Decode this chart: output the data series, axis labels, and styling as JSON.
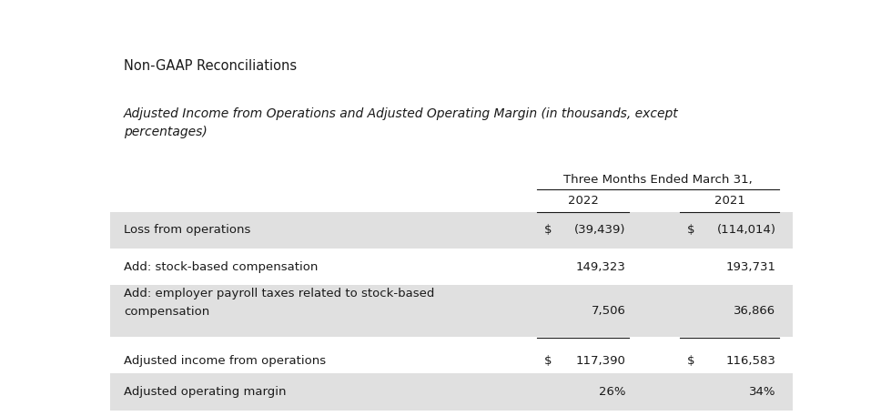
{
  "title1": "Non-GAAP Reconciliations",
  "title2": "Adjusted Income from Operations and Adjusted Operating Margin (in thousands, except\npercentages)",
  "header_period": "Three Months Ended March 31,",
  "col_headers": [
    "2022",
    "2021"
  ],
  "rows": [
    {
      "label": "Loss from operations",
      "val2022_dollar": "$",
      "val2022": "(39,439)",
      "val2021_dollar": "$",
      "val2021": "(114,014)",
      "shaded": true,
      "underline_before": false,
      "double_underline": false
    },
    {
      "label": "Add: stock-based compensation",
      "val2022_dollar": "",
      "val2022": "149,323",
      "val2021_dollar": "",
      "val2021": "193,731",
      "shaded": false,
      "underline_before": false,
      "double_underline": false
    },
    {
      "label": "Add: employer payroll taxes related to stock-based\ncompensation",
      "val2022_dollar": "",
      "val2022": "7,506",
      "val2021_dollar": "",
      "val2021": "36,866",
      "shaded": true,
      "underline_before": false,
      "double_underline": false
    },
    {
      "label": "Adjusted income from operations",
      "val2022_dollar": "$",
      "val2022": "117,390",
      "val2021_dollar": "$",
      "val2021": "116,583",
      "shaded": false,
      "underline_before": true,
      "double_underline": true
    },
    {
      "label": "Adjusted operating margin",
      "val2022_dollar": "",
      "val2022": "26%",
      "val2021_dollar": "",
      "val2021": "34%",
      "shaded": true,
      "underline_before": false,
      "double_underline": false
    }
  ],
  "bg_color": "#ffffff",
  "shaded_color": "#e0e0e0",
  "text_color": "#1a1a1a",
  "line_color": "#1a1a1a",
  "font_size": 9.5,
  "header_font_size": 9.5,
  "title1_color": "#1a1a1a",
  "title2_color": "#1a1a1a"
}
